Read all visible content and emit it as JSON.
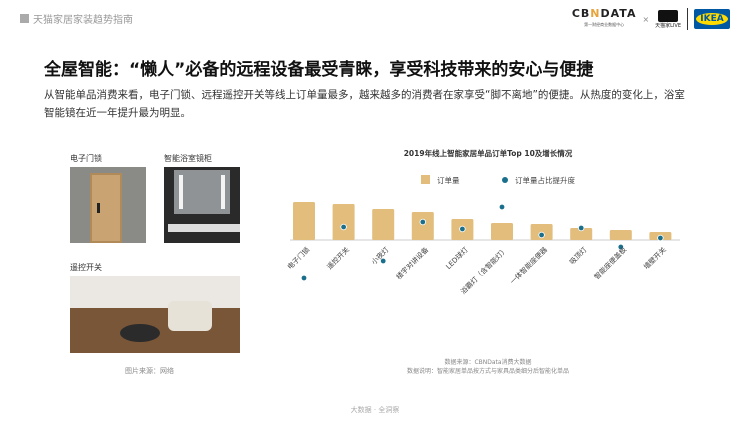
{
  "header": {
    "report_title": "天猫家居家装趋势指南",
    "logos": [
      "CBNDATA",
      "第一财经商业数据中心",
      "天猫家LIVE",
      "IKEA"
    ]
  },
  "title": "全屋智能：“懒人”必备的远程设备最受青睐，享受科技带来的安心与便捷",
  "description": "从智能单品消费来看，电子门锁、远程遥控开关等线上订单量最多，越来越多的消费者在家享受“脚不离地”的便捷。从热度的变化上，浴室智能镜在近一年提升最为明显。",
  "photos": [
    {
      "label": "电子门锁"
    },
    {
      "label": "智能浴室镜柜"
    },
    {
      "label": "遥控开关"
    }
  ],
  "photo_source": "图片来源：网络",
  "chart_data": {
    "type": "bar",
    "title": "2019年线上智能家居单品订单Top 10及增长情况",
    "categories": [
      "电子门锁",
      "遥控开关",
      "小夜灯",
      "楼宇对讲设备",
      "LED球灯",
      "浴霸灯（含智能灯）",
      "一体智能座便器",
      "吸顶灯",
      "智能座便盖板",
      "墙壁开关"
    ],
    "series": [
      {
        "name": "订单量",
        "type": "bar",
        "color": "#e2bd7c",
        "values": [
          38,
          36,
          31,
          28,
          21,
          17,
          16,
          12,
          10,
          8
        ]
      },
      {
        "name": "订单量占比提升度",
        "type": "scatter",
        "color": "#1a6f8c",
        "values": [
          -38,
          13,
          -21,
          18,
          11,
          33,
          5,
          12,
          -7,
          2
        ]
      }
    ],
    "legend": "top",
    "grid": false,
    "source": "数据来源：CBNData消费大数据",
    "note": "数据说明：智能家居单品按方式与家具品类细分后智能化单品"
  },
  "footer": "大数据 · 全洞察"
}
